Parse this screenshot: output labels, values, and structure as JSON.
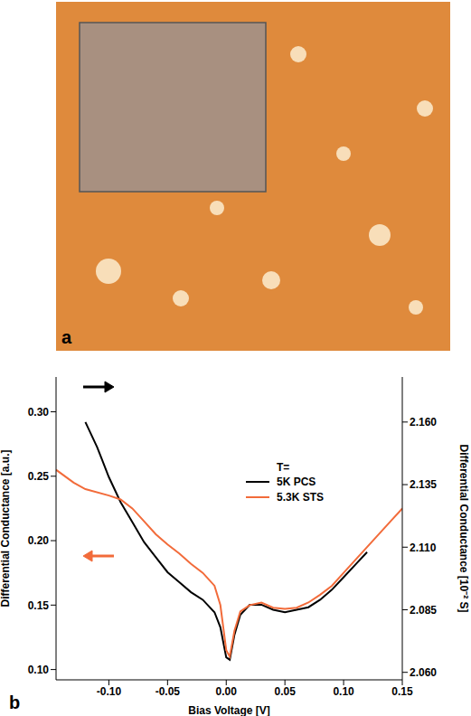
{
  "panel_a": {
    "label": "a"
  },
  "chart_data": {
    "type": "line",
    "panel_label": "b",
    "legend_title": "T=",
    "legend": "upper right",
    "x_label": "Bias Voltage [V]",
    "y_label": "Differential Conductance [a.u.]",
    "y2_label": "Differential Conductance [10⁻² S]",
    "xlim": [
      -0.145,
      0.15
    ],
    "xticks": [
      {
        "value": -0.1,
        "label": "-0.10"
      },
      -0.05,
      {
        "value": 0,
        "label": "0.00"
      },
      0.05,
      {
        "value": 0.1,
        "label": "0.10"
      },
      0.15
    ],
    "ylim": [
      0.092,
      0.327
    ],
    "yticks": [
      {
        "value": 0.1,
        "label": "0.10"
      },
      0.15,
      {
        "value": 0.2,
        "label": "0.20"
      },
      0.25,
      {
        "value": 0.3,
        "label": "0.30"
      }
    ],
    "y2lim": [
      2.057,
      2.178
    ],
    "y2ticks": [
      {
        "value": 2.06,
        "label": "2.060"
      },
      2.085,
      {
        "value": 2.11,
        "label": "2.110"
      },
      2.135,
      {
        "value": 2.16,
        "label": "2.160"
      }
    ],
    "grid": false,
    "series": [
      {
        "name": "5K PCS",
        "color": "#000000",
        "axis": "y2",
        "x": [
          -0.12,
          -0.11,
          -0.1,
          -0.09,
          -0.08,
          -0.07,
          -0.06,
          -0.05,
          -0.04,
          -0.03,
          -0.02,
          -0.01,
          -0.005,
          0,
          0.003,
          0.007,
          0.012,
          0.02,
          0.03,
          0.04,
          0.05,
          0.06,
          0.07,
          0.08,
          0.09,
          0.1,
          0.11,
          0.12
        ],
        "values": [
          2.16,
          2.15,
          2.138,
          2.128,
          2.12,
          2.112,
          2.106,
          2.1,
          2.096,
          2.092,
          2.089,
          2.084,
          2.078,
          2.066,
          2.065,
          2.075,
          2.083,
          2.087,
          2.087,
          2.085,
          2.084,
          2.085,
          2.086,
          2.089,
          2.093,
          2.098,
          2.103,
          2.108
        ]
      },
      {
        "name": "5.3K STS",
        "color": "#f26b3a",
        "x": [
          -0.145,
          -0.13,
          -0.12,
          -0.1,
          -0.09,
          -0.08,
          -0.07,
          -0.06,
          -0.05,
          -0.04,
          -0.03,
          -0.02,
          -0.01,
          -0.005,
          0,
          0.003,
          0.007,
          0.012,
          0.02,
          0.03,
          0.04,
          0.05,
          0.06,
          0.07,
          0.08,
          0.09,
          0.1,
          0.11,
          0.12,
          0.13,
          0.14,
          0.15
        ],
        "values": [
          0.255,
          0.245,
          0.24,
          0.235,
          0.232,
          0.225,
          0.215,
          0.205,
          0.197,
          0.19,
          0.182,
          0.175,
          0.165,
          0.15,
          0.115,
          0.11,
          0.13,
          0.145,
          0.15,
          0.152,
          0.148,
          0.147,
          0.148,
          0.152,
          0.158,
          0.165,
          0.175,
          0.185,
          0.195,
          0.205,
          0.215,
          0.225
        ]
      }
    ]
  }
}
